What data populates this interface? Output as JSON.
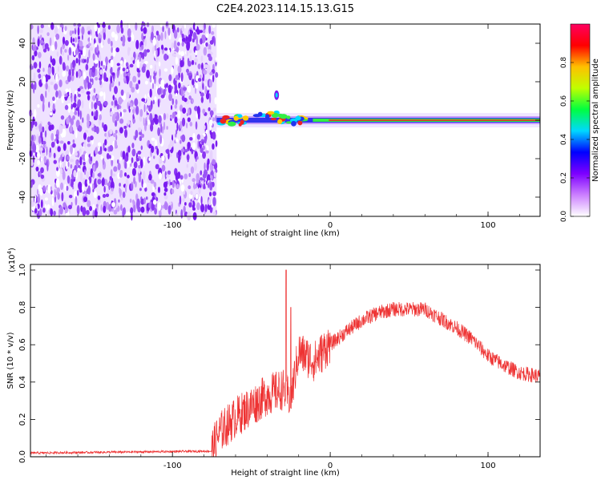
{
  "title": "C2E4.2023.114.15.13.G15",
  "chart_data": [
    {
      "type": "heatmap",
      "xlabel": "Height of straight line (km)",
      "ylabel": "Frequency (Hz)",
      "xlim": [
        -190,
        133
      ],
      "ylim": [
        -50,
        50
      ],
      "x_ticks": [
        -100,
        0,
        100
      ],
      "y_ticks": [
        -40,
        -20,
        0,
        20,
        40
      ],
      "noise_region_x": [
        -190,
        -72
      ],
      "carrier_start_x": -72,
      "carrier_freq": 0,
      "colorbar": {
        "label": "Normalized spectral amplitude",
        "range": [
          0,
          1
        ],
        "ticks": [
          0.0,
          0.2,
          0.4,
          0.6,
          0.8
        ],
        "colors": [
          "#ffffff",
          "#cc80ff",
          "#7d00ff",
          "#0000ff",
          "#00d8ff",
          "#00ff40",
          "#c0ff00",
          "#ffc000",
          "#ff0000",
          "#ff0060"
        ]
      }
    },
    {
      "type": "line",
      "xlabel": "Height of straight line (km)",
      "ylabel": "SNR (10 * v/v)",
      "y_scale_label": "(x10",
      "y_scale_exp": "4",
      "y_scale_close": ")",
      "xlim": [
        -190,
        133
      ],
      "ylim": [
        0,
        1.03
      ],
      "x_ticks": [
        -100,
        0,
        100
      ],
      "y_ticks": [
        0.0,
        0.2,
        0.4,
        0.6,
        0.8,
        1.0
      ],
      "series": [
        {
          "color": "#ee3333",
          "x": [
            -190,
            -75,
            -70,
            -60,
            -50,
            -40,
            -30,
            -25,
            -20,
            -10,
            0,
            10,
            20,
            30,
            40,
            50,
            60,
            70,
            80,
            90,
            100,
            110,
            120,
            133
          ],
          "y": [
            0.02,
            0.03,
            0.12,
            0.2,
            0.26,
            0.32,
            0.35,
            0.3,
            0.55,
            0.5,
            0.6,
            0.67,
            0.73,
            0.77,
            0.79,
            0.79,
            0.79,
            0.74,
            0.69,
            0.63,
            0.54,
            0.49,
            0.45,
            0.43
          ]
        }
      ],
      "spikes": [
        {
          "x": -28,
          "y": 1.0
        },
        {
          "x": -25,
          "y": 0.8
        }
      ]
    }
  ]
}
